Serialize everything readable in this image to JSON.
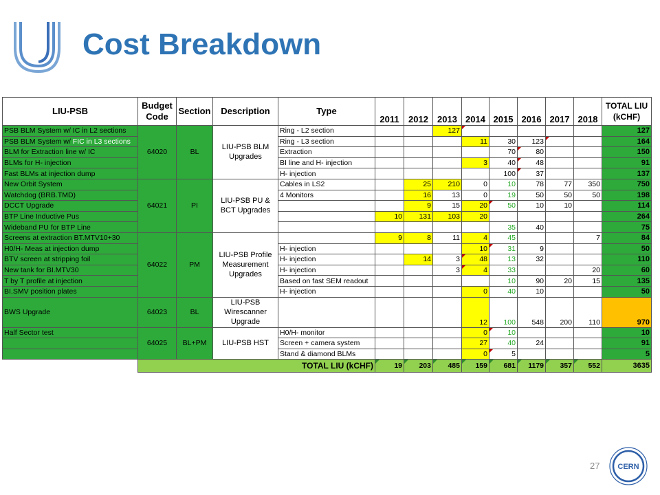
{
  "title": "Cost Breakdown",
  "page_number": "27",
  "cern_logo_text": "CERN",
  "header": {
    "liu_psb": "LIU-PSB",
    "budget_code": "Budget Code",
    "section": "Section",
    "description": "Description",
    "type": "Type",
    "years": [
      "2011",
      "2012",
      "2013",
      "2014",
      "2015",
      "2016",
      "2017",
      "2018"
    ],
    "total": "TOTAL LIU (kCHF)"
  },
  "groups": [
    {
      "code": "64020",
      "section": "BL",
      "description": "LIU-PSB BLM Upgrades"
    },
    {
      "code": "64021",
      "section": "PI",
      "description": "LIU-PSB PU & BCT Upgrades"
    },
    {
      "code": "64022",
      "section": "PM",
      "description": "LIU-PSB Profile Measurement Upgrades"
    },
    {
      "code": "64023",
      "section": "BL",
      "description": "LIU-PSB Wirescanner Upgrade"
    },
    {
      "code": "64025",
      "section": "BL+PM",
      "description": "LIU-PSB HST"
    }
  ],
  "rows": [
    {
      "item": "PSB BLM System w/ IC in L2 sections",
      "item_hl": "",
      "type": "Ring - L2 section",
      "vals": [
        "",
        "",
        "127",
        "",
        "",
        "",
        "",
        ""
      ],
      "total": "127"
    },
    {
      "item": "PSB BLM System w/ ",
      "item_hl": "FIC in L3 sections",
      "type": "Ring - L3 section",
      "vals": [
        "",
        "",
        "",
        "11",
        "30",
        "123",
        "",
        ""
      ],
      "total": "164"
    },
    {
      "item": "BLM for Extraction line w/ IC",
      "item_hl": "",
      "type": "Extraction",
      "vals": [
        "",
        "",
        "",
        "",
        "70",
        "80",
        "",
        ""
      ],
      "total": "150"
    },
    {
      "item": "BLMs for H- injection",
      "item_hl": "",
      "type": "BI line and H- injection",
      "vals": [
        "",
        "",
        "",
        "3",
        "40",
        "48",
        "",
        ""
      ],
      "total": "91"
    },
    {
      "item": "Fast BLMs at injection dump",
      "item_hl": "",
      "type": "H- injection",
      "vals": [
        "",
        "",
        "",
        "",
        "100",
        "37",
        "",
        ""
      ],
      "total": "137"
    },
    {
      "item": "New Orbit System",
      "item_hl": "",
      "type": "Cables in LS2",
      "vals": [
        "",
        "25",
        "210",
        "0",
        "10",
        "78",
        "77",
        "350"
      ],
      "total": "750"
    },
    {
      "item": "Watchdog (BRB.TMD)",
      "item_hl": "",
      "type": "4 Monitors",
      "vals": [
        "",
        "16",
        "13",
        "0",
        "19",
        "50",
        "50",
        "50"
      ],
      "total": "198"
    },
    {
      "item": "DCCT Upgrade",
      "item_hl": "",
      "type": "",
      "vals": [
        "",
        "9",
        "15",
        "20",
        "50",
        "10",
        "10",
        ""
      ],
      "total": "114"
    },
    {
      "item": "BTP Line Inductive Pus",
      "item_hl": "",
      "type": "",
      "vals": [
        "10",
        "131",
        "103",
        "20",
        "",
        "",
        "",
        ""
      ],
      "total": "264"
    },
    {
      "item": "Wideband PU for BTP Line",
      "item_hl": "",
      "type": "",
      "vals": [
        "",
        "",
        "",
        "",
        "35",
        "40",
        "",
        ""
      ],
      "total": "75"
    },
    {
      "item": "Screens at extraction BT.MTV10+30",
      "item_hl": "",
      "type": "",
      "vals": [
        "9",
        "8",
        "11",
        "4",
        "45",
        "",
        "",
        "7"
      ],
      "total": "84"
    },
    {
      "item": "H0/H- Meas at injection dump",
      "item_hl": "",
      "type": "H- injection",
      "vals": [
        "",
        "",
        "",
        "10",
        "31",
        "9",
        "",
        ""
      ],
      "total": "50"
    },
    {
      "item": "BTV screen at stripping foil",
      "item_hl": "",
      "type": "H- injection",
      "vals": [
        "",
        "14",
        "3",
        "48",
        "13",
        "32",
        "",
        ""
      ],
      "total": "110"
    },
    {
      "item": "New tank for BI.MTV30",
      "item_hl": "",
      "type": "H- injection",
      "vals": [
        "",
        "",
        "3",
        "4",
        "33",
        "",
        "",
        "20"
      ],
      "total": "60"
    },
    {
      "item": "T by T profile at injection",
      "item_hl": "",
      "type": "Based on fast SEM readout",
      "vals": [
        "",
        "",
        "",
        "",
        "10",
        "90",
        "20",
        "15"
      ],
      "total": "135"
    },
    {
      "item": "BI.SMV position plates",
      "item_hl": "",
      "type": "H- injection",
      "vals": [
        "",
        "",
        "",
        "0",
        "40",
        "10",
        "",
        ""
      ],
      "total": "50"
    },
    {
      "item": "BWS Upgrade",
      "item_hl": "",
      "type": "",
      "vals": [
        "",
        "",
        "",
        "12",
        "100",
        "548",
        "200",
        "110"
      ],
      "total": "970"
    },
    {
      "item": "Half Sector test",
      "item_hl": "",
      "type": "H0/H- monitor",
      "vals": [
        "",
        "",
        "",
        "0",
        "10",
        "",
        "",
        ""
      ],
      "total": "10"
    },
    {
      "item": "",
      "item_hl": "",
      "type": "Screen + camera system",
      "vals": [
        "",
        "",
        "",
        "27",
        "40",
        "24",
        "",
        ""
      ],
      "total": "91"
    },
    {
      "item": "",
      "item_hl": "",
      "type": "Stand & diamond BLMs",
      "vals": [
        "",
        "",
        "",
        "0",
        "5",
        "",
        "",
        ""
      ],
      "total": "5"
    }
  ],
  "footer": {
    "label": "TOTAL LIU (kCHF)",
    "vals": [
      "19",
      "203",
      "485",
      "159",
      "681",
      "1179",
      "357",
      "552"
    ],
    "total": "3635"
  },
  "colors": {
    "title": "#2e74b5",
    "green_cell": "#2daa3a",
    "light_green": "#92d050",
    "yellow": "#ffff00",
    "orange": "#ffc000"
  }
}
